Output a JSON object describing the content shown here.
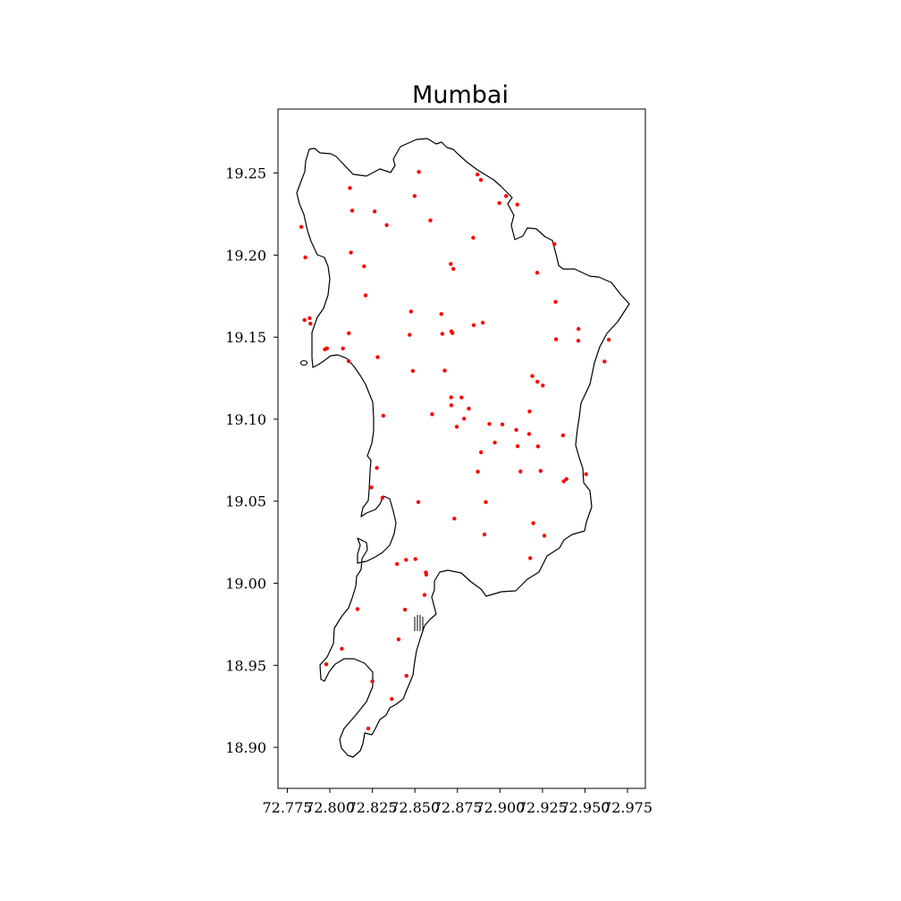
{
  "chart_data": {
    "type": "scatter",
    "title": "Mumbai",
    "xlabel": "",
    "ylabel": "",
    "xlim": [
      72.7695,
      72.9855
    ],
    "ylim": [
      18.875,
      19.289
    ],
    "xticks": [
      "72.775",
      "72.800",
      "72.825",
      "72.850",
      "72.875",
      "72.900",
      "72.925",
      "72.950",
      "72.975"
    ],
    "yticks": [
      "18.90",
      "18.95",
      "19.00",
      "19.05",
      "19.10",
      "19.15",
      "19.20",
      "19.25"
    ],
    "grid": false,
    "point_color": "#ff0000",
    "boundary_color": "#000000",
    "points": [
      [
        72.8523,
        19.2507
      ],
      [
        72.8868,
        19.2491
      ],
      [
        72.8888,
        19.2458
      ],
      [
        72.9036,
        19.236
      ],
      [
        72.8997,
        19.2317
      ],
      [
        72.9102,
        19.2308
      ],
      [
        72.8498,
        19.236
      ],
      [
        72.8118,
        19.2409
      ],
      [
        72.8131,
        19.2271
      ],
      [
        72.8263,
        19.2266
      ],
      [
        72.8334,
        19.2183
      ],
      [
        72.8591,
        19.2211
      ],
      [
        72.7832,
        19.2172
      ],
      [
        72.7856,
        19.1986
      ],
      [
        72.8124,
        19.2015
      ],
      [
        72.8201,
        19.1932
      ],
      [
        72.8843,
        19.2106
      ],
      [
        72.932,
        19.2067
      ],
      [
        72.8711,
        19.1946
      ],
      [
        72.8726,
        19.1916
      ],
      [
        72.9219,
        19.1892
      ],
      [
        72.821,
        19.1755
      ],
      [
        72.9327,
        19.1715
      ],
      [
        72.8477,
        19.1656
      ],
      [
        72.8655,
        19.1641
      ],
      [
        72.8899,
        19.1588
      ],
      [
        72.8846,
        19.1573
      ],
      [
        72.7851,
        19.1604
      ],
      [
        72.7881,
        19.1616
      ],
      [
        72.7886,
        19.1582
      ],
      [
        72.8469,
        19.1514
      ],
      [
        72.8661,
        19.152
      ],
      [
        72.8714,
        19.1535
      ],
      [
        72.8721,
        19.1525
      ],
      [
        72.8112,
        19.1524
      ],
      [
        72.9462,
        19.155
      ],
      [
        72.9461,
        19.1478
      ],
      [
        72.933,
        19.1487
      ],
      [
        72.964,
        19.1484
      ],
      [
        72.7971,
        19.1426
      ],
      [
        72.7983,
        19.1432
      ],
      [
        72.8077,
        19.1431
      ],
      [
        72.811,
        19.1354
      ],
      [
        72.8281,
        19.1378
      ],
      [
        72.9615,
        19.1351
      ],
      [
        72.8488,
        19.1294
      ],
      [
        72.8675,
        19.1296
      ],
      [
        72.919,
        19.1263
      ],
      [
        72.922,
        19.1228
      ],
      [
        72.9252,
        19.1205
      ],
      [
        72.8713,
        19.1133
      ],
      [
        72.8774,
        19.1132
      ],
      [
        72.8714,
        19.1085
      ],
      [
        72.8817,
        19.1064
      ],
      [
        72.8601,
        19.103
      ],
      [
        72.8314,
        19.1021
      ],
      [
        72.9174,
        19.1047
      ],
      [
        72.8789,
        19.1003
      ],
      [
        72.8746,
        19.0954
      ],
      [
        72.8938,
        19.0971
      ],
      [
        72.9014,
        19.0968
      ],
      [
        72.9096,
        19.0935
      ],
      [
        72.9171,
        19.091
      ],
      [
        72.9371,
        19.0901
      ],
      [
        72.897,
        19.0857
      ],
      [
        72.9104,
        19.0835
      ],
      [
        72.9224,
        19.0834
      ],
      [
        72.8889,
        19.0798
      ],
      [
        72.8276,
        19.0703
      ],
      [
        72.887,
        19.068
      ],
      [
        72.9121,
        19.0681
      ],
      [
        72.9239,
        19.0685
      ],
      [
        72.9506,
        19.0665
      ],
      [
        72.9391,
        19.0635
      ],
      [
        72.9375,
        19.0621
      ],
      [
        72.8244,
        19.0584
      ],
      [
        72.8309,
        19.0521
      ],
      [
        72.852,
        19.0495
      ],
      [
        72.8917,
        19.0495
      ],
      [
        72.8732,
        19.0394
      ],
      [
        72.9196,
        19.0366
      ],
      [
        72.8909,
        19.0297
      ],
      [
        72.9261,
        19.029
      ],
      [
        72.9178,
        19.0153
      ],
      [
        72.8448,
        19.0143
      ],
      [
        72.8503,
        19.0148
      ],
      [
        72.8395,
        19.0118
      ],
      [
        72.8565,
        19.0066
      ],
      [
        72.8567,
        19.0053
      ],
      [
        72.8557,
        18.9929
      ],
      [
        72.8162,
        18.9843
      ],
      [
        72.8442,
        18.9839
      ],
      [
        72.807,
        18.9601
      ],
      [
        72.8404,
        18.9658
      ],
      [
        72.7979,
        18.9506
      ],
      [
        72.845,
        18.9436
      ],
      [
        72.825,
        18.9402
      ],
      [
        72.8364,
        18.9295
      ],
      [
        72.8226,
        18.9115
      ]
    ]
  }
}
